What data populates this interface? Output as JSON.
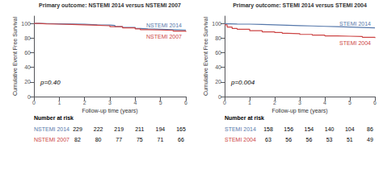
{
  "chart_data": [
    {
      "type": "step",
      "title": "Primary outcome: NSTEMI 2014 versus NSTEMI 2007",
      "xlabel": "Follow-up time (years)",
      "ylabel": "Cumulative Event Free Survival",
      "xlim": [
        0,
        6
      ],
      "ylim": [
        0,
        110
      ],
      "xticks": [
        0,
        1,
        2,
        3,
        4,
        5,
        6
      ],
      "yticks": [
        0,
        20,
        40,
        60,
        80,
        100
      ],
      "grid": false,
      "annotations": [
        "p=0.40"
      ],
      "at_risk_title": "Number at risk",
      "series": [
        {
          "name": "NSTEMI 2014",
          "color": "#5577aa",
          "x": [
            0,
            0.2,
            0.5,
            1,
            1.5,
            2,
            2.5,
            3,
            3.2,
            3.5,
            4,
            4.2,
            4.5,
            5,
            5.5,
            6
          ],
          "values": [
            100,
            99.8,
            99.5,
            99.2,
            98.8,
            98.2,
            97.8,
            97.2,
            95.5,
            94.5,
            93.0,
            92.5,
            92.0,
            91.5,
            91.0,
            90.5
          ],
          "at_risk": [
            229,
            222,
            219,
            211,
            194,
            165
          ]
        },
        {
          "name": "NSTEMI 2007",
          "color": "#cc4444",
          "x": [
            0,
            0.2,
            0.5,
            1,
            1.5,
            2,
            2.5,
            3,
            3.5,
            4,
            4.2,
            4.5,
            5,
            5.5,
            6
          ],
          "values": [
            100,
            99.5,
            99.0,
            98.5,
            98.0,
            97.5,
            96.8,
            95.5,
            94.0,
            92.5,
            91.5,
            91.0,
            90.5,
            89.5,
            88.5
          ],
          "at_risk": [
            82,
            80,
            77,
            75,
            71,
            66
          ]
        }
      ]
    },
    {
      "type": "step",
      "title": "Primary outcome: STEMI 2014 versus STEMI 2004",
      "xlabel": "Follow-up time (years)",
      "ylabel": "Cumulative Event Free Survival",
      "xlim": [
        0,
        6
      ],
      "ylim": [
        0,
        110
      ],
      "xticks": [
        0,
        1,
        2,
        3,
        4,
        5,
        6
      ],
      "yticks": [
        0,
        20,
        40,
        60,
        80,
        100
      ],
      "grid": false,
      "annotations": [
        "p=0.004"
      ],
      "at_risk_title": "Number at risk",
      "series": [
        {
          "name": "STEMI 2014",
          "color": "#5577aa",
          "x": [
            0,
            0.2,
            0.5,
            1,
            1.5,
            2,
            2.5,
            3,
            3.5,
            4,
            4.5,
            5,
            5.5,
            6
          ],
          "values": [
            99.5,
            99.2,
            99.0,
            98.5,
            98.0,
            97.5,
            97.0,
            96.5,
            96.0,
            95.5,
            95.0,
            94.5,
            94.0,
            93.5
          ],
          "at_risk": [
            158,
            156,
            154,
            140,
            104,
            86
          ]
        },
        {
          "name": "STEMI 2004",
          "color": "#cc4444",
          "x": [
            0,
            0.1,
            0.3,
            0.5,
            1,
            1.5,
            2,
            2.3,
            2.5,
            3,
            3.5,
            4,
            4.5,
            5,
            5.5,
            6
          ],
          "values": [
            98,
            95,
            93,
            92,
            90,
            88.5,
            87.5,
            86.5,
            86,
            85,
            84,
            83,
            82.5,
            82,
            81,
            80
          ],
          "at_risk": [
            63,
            56,
            56,
            53,
            51,
            49
          ]
        }
      ]
    }
  ]
}
